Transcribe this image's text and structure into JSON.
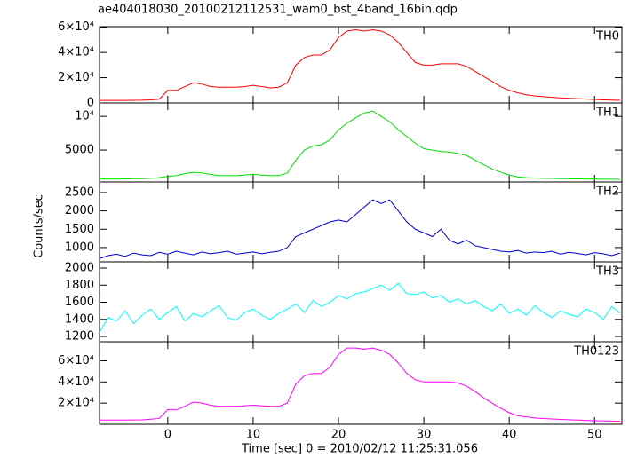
{
  "chart_data": [
    {
      "type": "line",
      "title": "ae404018030_20100212112531_wam0_bst_4band_16bin.qdp",
      "ylabel": "Counts/sec",
      "series": [
        {
          "name": "TH0",
          "color": "#ff0000",
          "values": [
            2000,
            2000,
            2000,
            2000,
            2100,
            2200,
            2500,
            3000,
            10000,
            10000,
            13000,
            16000,
            15000,
            13000,
            12500,
            12500,
            12500,
            13000,
            14000,
            13000,
            12000,
            12500,
            16000,
            30000,
            36000,
            38000,
            38000,
            42000,
            52000,
            57000,
            58000,
            57000,
            58000,
            57000,
            54000,
            48000,
            40000,
            32000,
            30000,
            30000,
            31000,
            31000,
            31000,
            29000,
            25000,
            21000,
            17000,
            13000,
            10000,
            8000,
            6500,
            5500,
            5000,
            4500,
            4000,
            3700,
            3400,
            3100,
            2800,
            2500,
            2300,
            2100
          ]
        }
      ],
      "ylim": [
        0,
        60500
      ],
      "yticks": [
        0,
        {
          "value": 20000,
          "label": "2×10⁴"
        },
        {
          "value": 40000,
          "label": "4×10⁴"
        },
        {
          "value": 60000,
          "label": "6×10⁴"
        }
      ]
    },
    {
      "type": "line",
      "series": [
        {
          "name": "TH1",
          "color": "#00e000",
          "values": [
            700,
            700,
            700,
            700,
            750,
            750,
            800,
            900,
            1100,
            1200,
            1500,
            1700,
            1600,
            1400,
            1200,
            1200,
            1200,
            1300,
            1400,
            1300,
            1200,
            1200,
            1600,
            3500,
            5000,
            5600,
            5800,
            6500,
            8000,
            9000,
            9800,
            10500,
            10800,
            10000,
            9200,
            8000,
            7000,
            6000,
            5200,
            5000,
            4800,
            4700,
            4500,
            4200,
            3500,
            2800,
            2200,
            1700,
            1300,
            1000,
            900,
            850,
            800,
            780,
            760,
            740,
            720,
            700,
            700,
            680,
            670,
            650
          ]
        }
      ],
      "ylim": [
        260,
        12000
      ],
      "yticks": [
        5000,
        {
          "value": 10000,
          "label": "10⁴"
        }
      ]
    },
    {
      "type": "line",
      "series": [
        {
          "name": "TH2",
          "color": "#0000cc",
          "values": [
            700,
            780,
            820,
            760,
            850,
            800,
            780,
            870,
            820,
            900,
            850,
            800,
            880,
            830,
            860,
            900,
            820,
            850,
            880,
            830,
            870,
            900,
            1000,
            1300,
            1400,
            1500,
            1600,
            1700,
            1750,
            1700,
            1900,
            2100,
            2300,
            2200,
            2300,
            2000,
            1700,
            1500,
            1400,
            1300,
            1500,
            1200,
            1100,
            1200,
            1050,
            1000,
            950,
            900,
            880,
            920,
            850,
            880,
            860,
            900,
            820,
            870,
            840,
            800,
            860,
            830,
            780,
            850
          ]
        }
      ],
      "ylim": [
        610,
        2790
      ],
      "yticks": [
        1000,
        1500,
        2000,
        2500
      ]
    },
    {
      "type": "line",
      "series": [
        {
          "name": "TH3",
          "color": "#00ffff",
          "values": [
            1250,
            1420,
            1380,
            1500,
            1350,
            1450,
            1520,
            1400,
            1480,
            1550,
            1380,
            1470,
            1430,
            1500,
            1560,
            1420,
            1390,
            1480,
            1520,
            1450,
            1400,
            1470,
            1520,
            1580,
            1480,
            1620,
            1550,
            1600,
            1680,
            1640,
            1700,
            1720,
            1760,
            1800,
            1740,
            1820,
            1700,
            1690,
            1720,
            1650,
            1680,
            1600,
            1640,
            1580,
            1620,
            1550,
            1500,
            1580,
            1470,
            1520,
            1450,
            1560,
            1480,
            1420,
            1500,
            1460,
            1430,
            1520,
            1480,
            1400,
            1550,
            1470
          ]
        }
      ],
      "ylim": [
        1138,
        2073
      ],
      "yticks": [
        1200,
        1400,
        1600,
        1800,
        2000
      ]
    },
    {
      "type": "line",
      "xlabel": "Time [sec] 0 = 2010/02/12 11:25:31.056",
      "x": [
        -8,
        -7,
        -6,
        -5,
        -4,
        -3,
        -2,
        -1,
        0,
        1,
        2,
        3,
        4,
        5,
        6,
        7,
        8,
        9,
        10,
        11,
        12,
        13,
        14,
        15,
        16,
        17,
        18,
        19,
        20,
        21,
        22,
        23,
        24,
        25,
        26,
        27,
        28,
        29,
        30,
        31,
        32,
        33,
        34,
        35,
        36,
        37,
        38,
        39,
        40,
        41,
        42,
        43,
        44,
        45,
        46,
        47,
        48,
        49,
        50,
        51,
        52,
        53
      ],
      "xlim": [
        -8,
        53.2
      ],
      "xticks": [
        0,
        10,
        20,
        30,
        40,
        50
      ],
      "series": [
        {
          "name": "TH0123",
          "color": "#ff00ff",
          "values": [
            4000,
            4000,
            4000,
            4000,
            4100,
            4200,
            4800,
            5500,
            14000,
            13500,
            17000,
            21000,
            20000,
            18000,
            17000,
            17000,
            17000,
            17500,
            18000,
            17500,
            17000,
            17000,
            20000,
            38000,
            46000,
            48000,
            48000,
            54000,
            66000,
            72000,
            72000,
            71000,
            72000,
            70000,
            66000,
            58000,
            48000,
            42000,
            40000,
            40000,
            40000,
            40000,
            39000,
            36000,
            31000,
            25000,
            20000,
            15000,
            11000,
            8000,
            7000,
            6000,
            5500,
            5000,
            4600,
            4300,
            4000,
            3700,
            3400,
            3200,
            3000,
            2800
          ]
        }
      ],
      "ylim": [
        0,
        78000
      ],
      "yticks": [
        {
          "value": 20000,
          "label": "2×10⁴"
        },
        {
          "value": 40000,
          "label": "4×10⁴"
        },
        {
          "value": 60000,
          "label": "6×10⁴"
        }
      ]
    }
  ]
}
